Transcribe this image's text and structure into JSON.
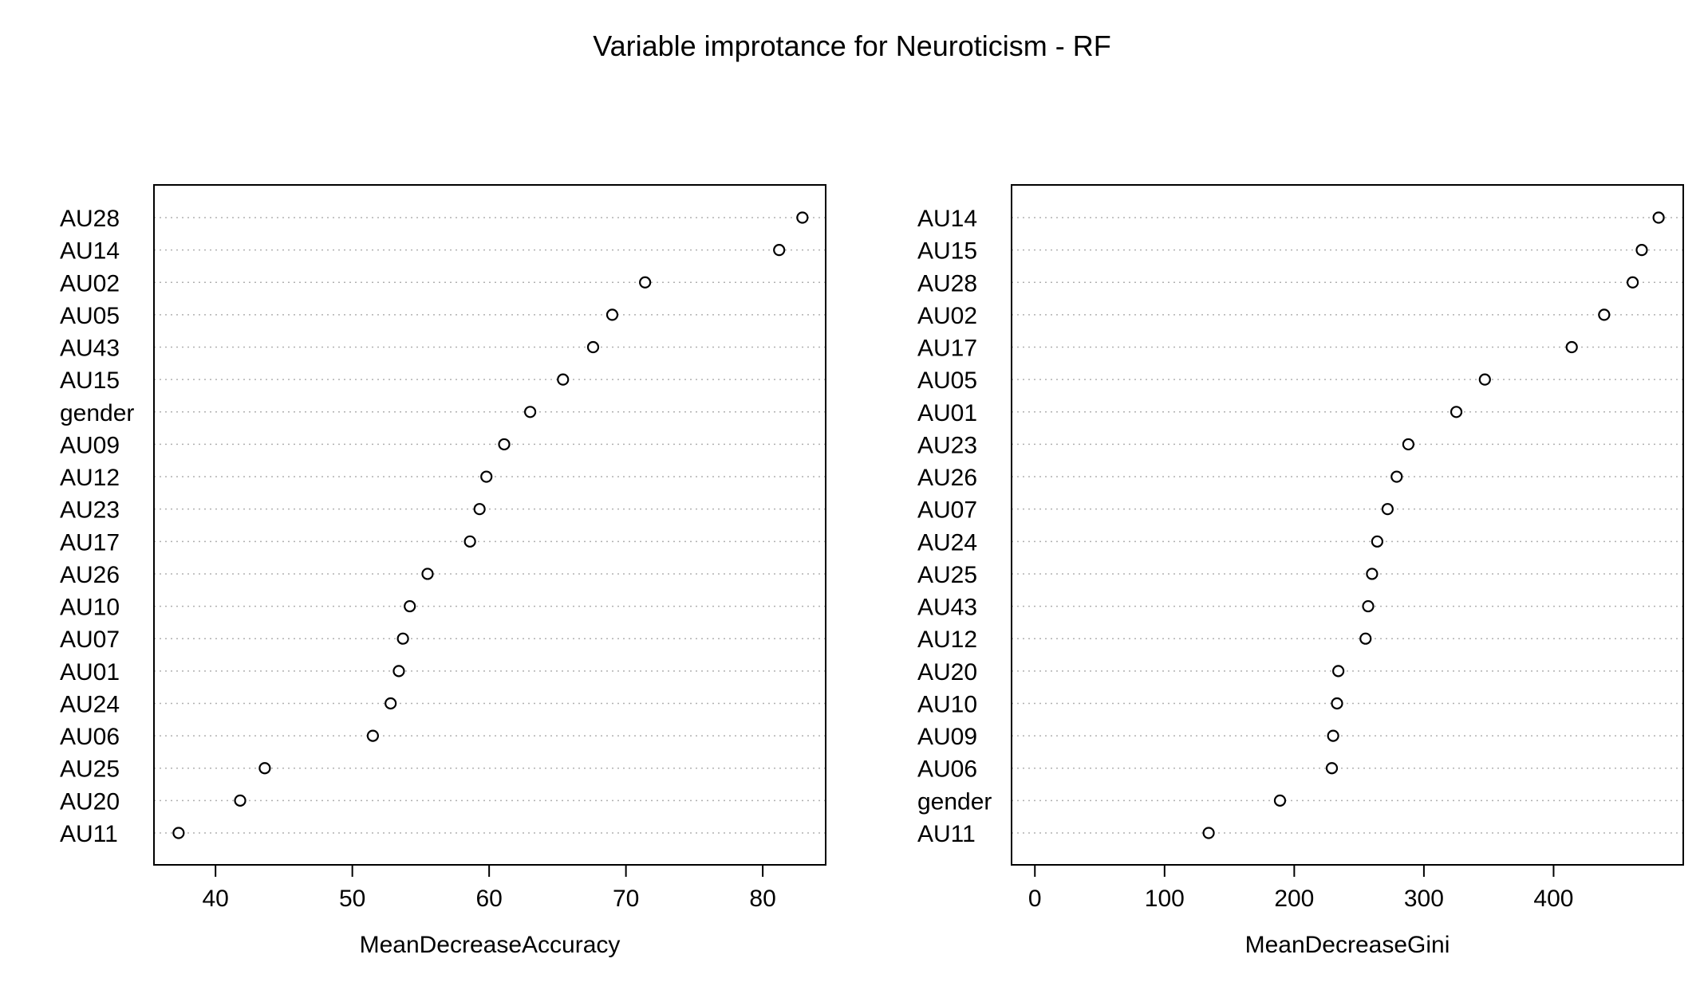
{
  "title": "Variable improtance for Neuroticism - RF",
  "chart_data": [
    {
      "type": "scatter",
      "name": "dotchart-accuracy",
      "xlabel": "MeanDecreaseAccuracy",
      "ylabel": "",
      "xlim": [
        35.5,
        84.6
      ],
      "xticks": [
        40,
        50,
        60,
        70,
        80
      ],
      "grid": "dotted-rows",
      "categories": [
        "AU28",
        "AU14",
        "AU02",
        "AU05",
        "AU43",
        "AU15",
        "gender",
        "AU09",
        "AU12",
        "AU23",
        "AU17",
        "AU26",
        "AU10",
        "AU07",
        "AU01",
        "AU24",
        "AU06",
        "AU25",
        "AU20",
        "AU11"
      ],
      "values": [
        82.9,
        81.2,
        71.4,
        69.0,
        67.6,
        65.4,
        63.0,
        61.1,
        59.8,
        59.3,
        58.6,
        55.5,
        54.2,
        53.7,
        53.4,
        52.8,
        51.5,
        43.6,
        41.8,
        37.3
      ]
    },
    {
      "type": "scatter",
      "name": "dotchart-gini",
      "xlabel": "MeanDecreaseGini",
      "ylabel": "",
      "xlim": [
        -18,
        500
      ],
      "xticks": [
        0,
        100,
        200,
        300,
        400
      ],
      "grid": "dotted-rows",
      "categories": [
        "AU14",
        "AU15",
        "AU28",
        "AU02",
        "AU17",
        "AU05",
        "AU01",
        "AU23",
        "AU26",
        "AU07",
        "AU24",
        "AU25",
        "AU43",
        "AU12",
        "AU20",
        "AU10",
        "AU09",
        "AU06",
        "gender",
        "AU11"
      ],
      "values": [
        481,
        468,
        461,
        439,
        414,
        347,
        325,
        288,
        279,
        272,
        264,
        260,
        257,
        255,
        234,
        233,
        230,
        229,
        189,
        134
      ]
    }
  ]
}
